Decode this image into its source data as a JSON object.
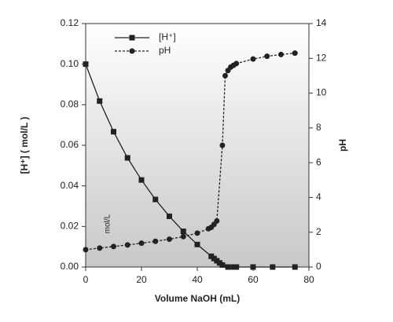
{
  "chart_data": {
    "type": "line",
    "x_label": "Volume NaOH (mL)",
    "y_label": "[H⁺] ( mol/L )",
    "y2_label": "pH",
    "annotation": "mol/L",
    "xlim": [
      0,
      80
    ],
    "xticks": [
      0,
      20,
      40,
      60,
      80
    ],
    "ylim": [
      0,
      0.12
    ],
    "yticks": [
      {
        "value": 0,
        "label": "0.00"
      },
      {
        "value": 0.02,
        "label": "0.02"
      },
      {
        "value": 0.04,
        "label": "0.04"
      },
      {
        "value": 0.06,
        "label": "0.06"
      },
      {
        "value": 0.08,
        "label": "0.08"
      },
      {
        "value": 0.1,
        "label": "0.10"
      },
      {
        "value": 0.12,
        "label": "0.12"
      }
    ],
    "y2lim": [
      0,
      14
    ],
    "y2ticks": [
      0,
      2,
      4,
      6,
      8,
      10,
      12,
      14
    ],
    "legend": "upper left",
    "series": [
      {
        "name": "[H⁺]",
        "color": "#222222",
        "marker": "square",
        "line_style": "solid",
        "x": [
          0,
          5,
          10,
          15,
          20,
          25,
          30,
          35,
          40,
          45,
          46,
          47,
          48,
          49,
          51,
          53,
          54,
          60,
          67,
          75
        ],
        "values": [
          0.1,
          0.0818,
          0.0667,
          0.0538,
          0.0429,
          0.0333,
          0.025,
          0.0176,
          0.0111,
          0.0053,
          0.0042,
          0.0031,
          0.002,
          0.001,
          0,
          0,
          0,
          0,
          0,
          0
        ]
      },
      {
        "name": "pH",
        "color": "#222222",
        "marker": "circle",
        "line_style": "dashed",
        "axis": "y2",
        "x": [
          0,
          5,
          10,
          15,
          20,
          25,
          30,
          35,
          40,
          44,
          45,
          46,
          47,
          49,
          50,
          51,
          52,
          53,
          54,
          60,
          65,
          70,
          75
        ],
        "values": [
          1,
          1.09,
          1.18,
          1.27,
          1.37,
          1.48,
          1.6,
          1.75,
          1.95,
          2.2,
          2.28,
          2.45,
          2.65,
          7,
          11,
          11.3,
          11.5,
          11.6,
          11.7,
          11.96,
          12.12,
          12.22,
          12.3
        ]
      }
    ]
  }
}
